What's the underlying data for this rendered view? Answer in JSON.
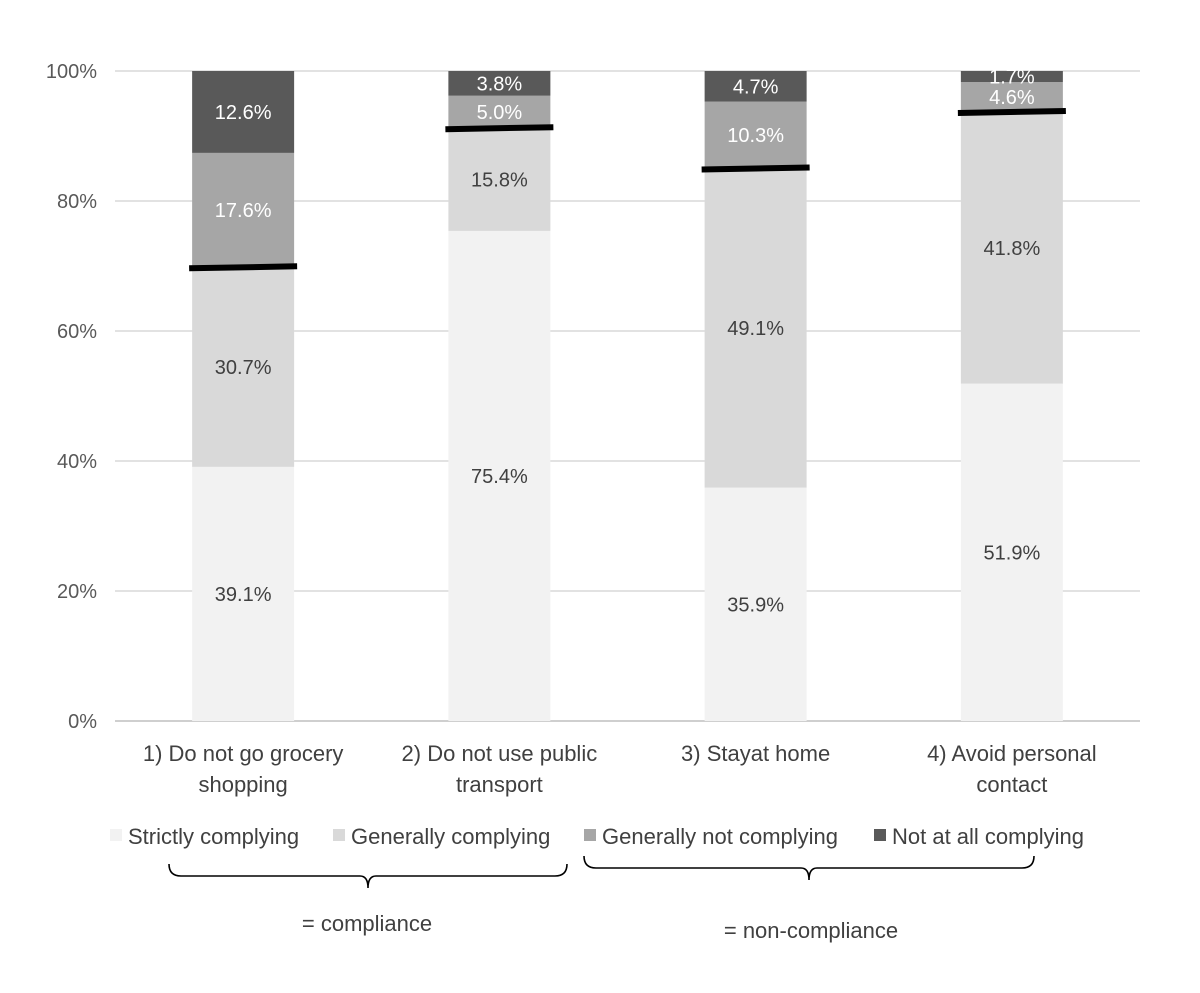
{
  "chart_data": {
    "type": "stacked-bar",
    "categories": [
      [
        "1) Do not go grocery",
        "shopping"
      ],
      [
        "2) Do not use public",
        "transport"
      ],
      [
        "3) Stayat home"
      ],
      [
        "4) Avoid personal",
        "contact"
      ]
    ],
    "series": [
      {
        "name": "Strictly complying",
        "color": "#f2f2f2",
        "label_color": "#404040",
        "values": [
          39.1,
          75.4,
          35.9,
          51.9
        ],
        "labels": [
          "39.1%",
          "75.4%",
          "35.9%",
          "51.9%"
        ]
      },
      {
        "name": "Generally complying",
        "color": "#d9d9d9",
        "label_color": "#404040",
        "values": [
          30.7,
          15.8,
          49.1,
          41.8
        ],
        "labels": [
          "30.7%",
          "15.8%",
          "49.1%",
          "41.8%"
        ]
      },
      {
        "name": "Generally not complying",
        "color": "#a6a6a6",
        "label_color": "#ffffff",
        "values": [
          17.6,
          5.0,
          10.3,
          4.6
        ],
        "labels": [
          "17.6%",
          "5.0%",
          "10.3%",
          "4.6%"
        ]
      },
      {
        "name": "Not at all complying",
        "color": "#595959",
        "label_color": "#ffffff",
        "values": [
          12.6,
          3.8,
          4.7,
          1.7
        ],
        "labels": [
          "12.6%",
          "3.8%",
          "4.7%",
          "1.7%"
        ]
      }
    ],
    "y_ticks": [
      "0%",
      "20%",
      "40%",
      "60%",
      "80%",
      "100%"
    ],
    "ylim": [
      0,
      100
    ],
    "grid": true,
    "compliance_threshold": [
      69.8,
      91.2,
      85.0,
      93.7
    ],
    "threshold_color": "#000000",
    "legend_position": "bottom",
    "groups": [
      {
        "label": "= compliance",
        "series": [
          "Strictly complying",
          "Generally complying"
        ]
      },
      {
        "label": "= non-compliance",
        "series": [
          "Generally not complying",
          "Not at all complying"
        ]
      }
    ]
  }
}
